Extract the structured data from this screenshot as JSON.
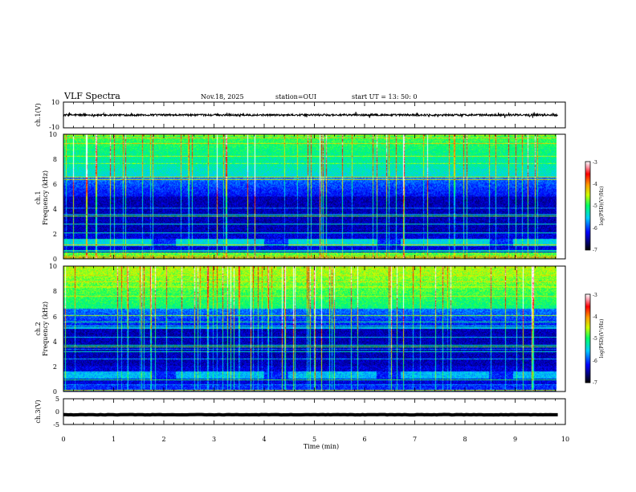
{
  "header": {
    "title": "VLF Spectra",
    "date": "Nov.18, 2025",
    "station": "station=OUI",
    "start": "start  UT  =   13: 50: 0"
  },
  "chart_data": [
    {
      "type": "line",
      "name": "ch1-waveform",
      "ylabel": "ch.1(V)",
      "ylim": [
        -10,
        10
      ],
      "yticks": [
        "10",
        "-10"
      ],
      "x_range_min": [
        0,
        9.85
      ],
      "baseline": 0,
      "amplitude": 1.2
    },
    {
      "type": "heatmap",
      "name": "ch1-spectrogram",
      "ylabel_line1": "ch.1",
      "ylabel_line2": "Frequency (kHz)",
      "ylim": [
        0,
        10
      ],
      "yticks": [
        "0",
        "2",
        "4",
        "6",
        "8",
        "10"
      ],
      "colorbar": {
        "label": "log(PSD)(V²/Hz)",
        "range": [
          -7,
          -3
        ],
        "ticks": [
          "-3",
          "-4",
          "-5",
          "-6",
          "-7"
        ]
      }
    },
    {
      "type": "heatmap",
      "name": "ch2-spectrogram",
      "ylabel_line1": "ch.2",
      "ylabel_line2": "Frequency (kHz)",
      "ylim": [
        0,
        10
      ],
      "yticks": [
        "0",
        "2",
        "4",
        "6",
        "8",
        "10"
      ],
      "colorbar": {
        "label": "log(PSD)(V²/Hz)",
        "range": [
          -7,
          -3
        ],
        "ticks": [
          "-3",
          "-4",
          "-5",
          "-6",
          "-7"
        ]
      }
    },
    {
      "type": "line",
      "name": "ch3-waveform",
      "ylabel": "ch.3(V)",
      "ylim": [
        -5,
        5
      ],
      "yticks": [
        "5",
        "0",
        "-5"
      ],
      "x_range_min": [
        0,
        9.85
      ],
      "baseline": -1.2,
      "amplitude": 0.15
    }
  ],
  "xaxis": {
    "label": "Time (min)",
    "range": [
      0,
      10
    ],
    "ticks": [
      "0",
      "1",
      "2",
      "3",
      "4",
      "5",
      "6",
      "7",
      "8",
      "9",
      "10"
    ]
  }
}
